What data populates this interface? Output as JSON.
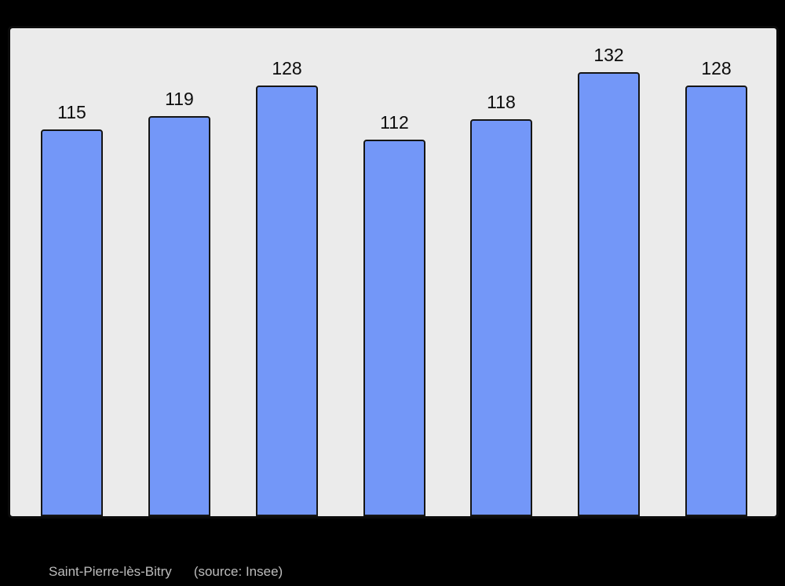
{
  "page": {
    "background_color": "#000000"
  },
  "chart": {
    "frame_background_color": "#ebebeb",
    "frame_border_color": "#0b0b0b",
    "bar_fill_color": "#7397f8",
    "bar_border_color": "#151515",
    "value_label_color": "#0c0c0c"
  },
  "chart_data": {
    "type": "bar",
    "values": [
      115,
      119,
      128,
      112,
      118,
      132,
      128
    ],
    "value_labels": [
      "115",
      "119",
      "128",
      "112",
      "118",
      "132",
      "128"
    ],
    "categories": [
      "",
      "",
      "",
      "",
      "",
      "",
      ""
    ],
    "title": "",
    "xlabel": "",
    "ylabel": "",
    "ylim": [
      0,
      145
    ],
    "grid": false,
    "legend": false,
    "axis_tick_labels_visible": false,
    "bar_count": 7
  },
  "caption": {
    "title": "Saint-Pierre-lès-Bitry",
    "source": "(source: Insee)",
    "color": "#bdbdbd"
  }
}
